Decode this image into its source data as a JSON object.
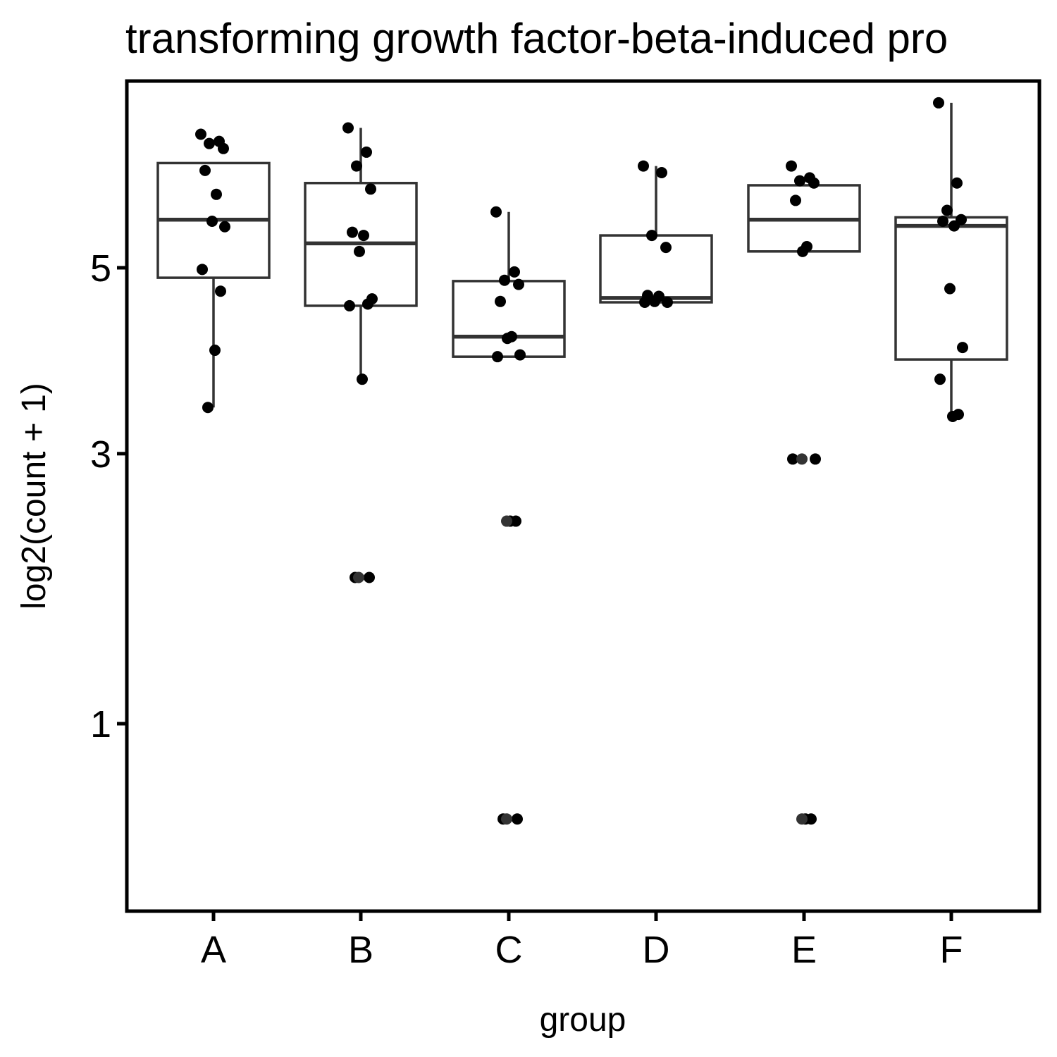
{
  "chart_data": {
    "type": "boxplot",
    "title": "transforming growth factor-beta-induced pro",
    "xlabel": "group",
    "ylabel": "log2(count + 1)",
    "y_scale": "sqrt",
    "ylim": [
      0.3,
      7.5
    ],
    "y_ticks": [
      1,
      3,
      5
    ],
    "y_tick_labels": [
      "1",
      "3",
      "5"
    ],
    "categories": [
      "A",
      "B",
      "C",
      "D",
      "E",
      "F"
    ],
    "grid": false,
    "legend": "none",
    "colors": {
      "box_stroke": "#333333",
      "points": "#000000",
      "outliers": "#333333",
      "panel_border": "#000000"
    },
    "boxes": [
      {
        "group": "A",
        "lower_whisker": 3.45,
        "q1": 4.88,
        "median": 5.6,
        "q3": 6.35,
        "upper_whisker": 6.35
      },
      {
        "group": "B",
        "lower_whisker": 3.74,
        "q1": 4.55,
        "median": 5.3,
        "q3": 6.08,
        "upper_whisker": 6.84
      },
      {
        "group": "C",
        "lower_whisker": 3.98,
        "q1": 3.98,
        "median": 4.2,
        "q3": 4.84,
        "upper_whisker": 5.7
      },
      {
        "group": "D",
        "lower_whisker": 4.59,
        "q1": 4.59,
        "median": 4.64,
        "q3": 5.4,
        "upper_whisker": 6.31
      },
      {
        "group": "E",
        "lower_whisker": 5.2,
        "q1": 5.2,
        "median": 5.6,
        "q3": 6.05,
        "upper_whisker": 6.05
      },
      {
        "group": "F",
        "lower_whisker": 3.36,
        "q1": 3.95,
        "median": 5.52,
        "q3": 5.63,
        "upper_whisker": 7.2
      }
    ],
    "points": [
      {
        "group": "A",
        "values": [
          6.75,
          6.65,
          6.62,
          6.55,
          6.25,
          5.93,
          5.58,
          5.51,
          4.98,
          4.72,
          4.05,
          3.45
        ]
      },
      {
        "group": "B",
        "values": [
          6.84,
          6.5,
          6.31,
          6.0,
          5.44,
          5.4,
          5.2,
          4.63,
          4.55,
          4.57,
          3.74,
          1.95,
          1.95
        ]
      },
      {
        "group": "C",
        "values": [
          5.7,
          4.95,
          4.85,
          4.8,
          4.6,
          4.2,
          4.18,
          4.0,
          3.98,
          2.4,
          2.4,
          0.55,
          0.55
        ]
      },
      {
        "group": "D",
        "values": [
          6.31,
          6.22,
          5.4,
          5.25,
          4.67,
          4.66,
          4.6,
          4.59,
          4.59
        ]
      },
      {
        "group": "E",
        "values": [
          6.31,
          6.15,
          6.11,
          6.08,
          5.85,
          5.26,
          5.2,
          2.95,
          2.95,
          0.55,
          0.55
        ]
      },
      {
        "group": "F",
        "values": [
          7.2,
          6.08,
          5.72,
          5.6,
          5.58,
          5.52,
          4.75,
          4.08,
          3.74,
          3.38,
          3.36
        ]
      }
    ],
    "outliers": [
      {
        "group": "B",
        "values": [
          1.95
        ]
      },
      {
        "group": "C",
        "values": [
          2.4,
          0.55
        ]
      },
      {
        "group": "E",
        "values": [
          2.95,
          0.55
        ]
      }
    ]
  }
}
